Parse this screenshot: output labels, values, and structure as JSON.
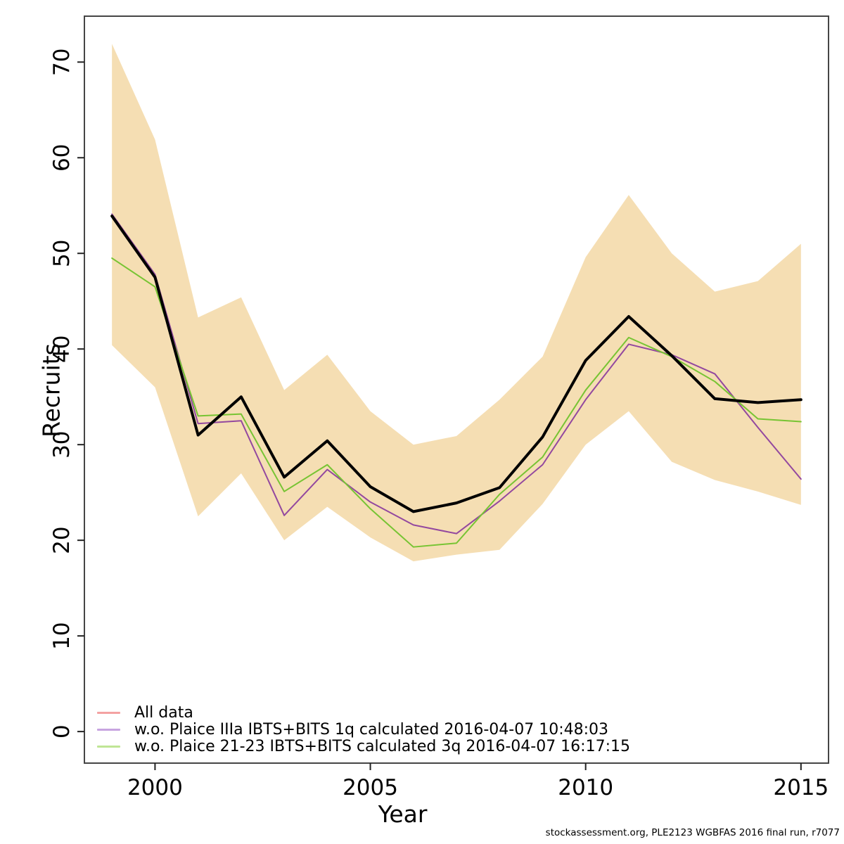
{
  "chart_data": {
    "type": "line",
    "title": "",
    "xlabel": "Year",
    "ylabel": "Recruits",
    "footer": "stockassessment.org, PLE2123 WGBFAS 2016 final run, r7077",
    "x": [
      1999,
      2000,
      2001,
      2002,
      2003,
      2004,
      2005,
      2006,
      2007,
      2008,
      2009,
      2010,
      2011,
      2012,
      2013,
      2014,
      2015
    ],
    "x_ticks": [
      2000,
      2005,
      2010,
      2015
    ],
    "y_ticks": [
      0,
      10,
      20,
      30,
      40,
      50,
      60,
      70
    ],
    "xlim": [
      1998.36,
      2015.64
    ],
    "ylim": [
      -3.3,
      74.8
    ],
    "grid": false,
    "legend_position": "bottom-left",
    "band": {
      "id": "confidence-band",
      "color": "#f5deb3",
      "upper": [
        71.9,
        61.9,
        43.3,
        45.4,
        35.7,
        39.4,
        33.5,
        30.0,
        30.9,
        34.7,
        39.2,
        49.6,
        56.1,
        50.0,
        46.0,
        47.1,
        51.0
      ],
      "lower": [
        40.4,
        36.0,
        22.5,
        27.0,
        20.0,
        23.5,
        20.3,
        17.8,
        18.5,
        19.0,
        23.8,
        30.0,
        33.5,
        28.2,
        26.3,
        25.1,
        23.7
      ]
    },
    "series": [
      {
        "id": "all-data",
        "name": "All data",
        "color": "#ee8181",
        "legend_color": "#f4a2a2",
        "width": 2,
        "in_legend": true,
        "values": [
          53.9,
          47.5,
          31.0,
          35.0,
          26.6,
          30.4,
          25.6,
          23.0,
          23.9,
          25.5,
          30.8,
          38.8,
          43.4,
          39.3,
          34.8,
          34.4,
          34.7
        ]
      },
      {
        "id": "wo-plaice-iiia-ibts-bits-1q",
        "name": "w.o. Plaice IIIa IBTS+BITS 1q calculated 2016-04-07 10:48:03",
        "color": "#93489f",
        "legend_color": "#c7a4e0",
        "width": 2,
        "in_legend": true,
        "values": [
          54.1,
          47.8,
          32.2,
          32.5,
          22.6,
          27.4,
          24.0,
          21.6,
          20.7,
          24.1,
          27.9,
          34.7,
          40.5,
          39.4,
          37.4,
          31.8,
          26.4
        ]
      },
      {
        "id": "wo-plaice-21-23-ibts-bits-3q",
        "name": "w.o. Plaice 21-23 IBTS+BITS calculated 3q 2016-04-07 16:17:15",
        "color": "#77c433",
        "legend_color": "#bfe595",
        "width": 2,
        "in_legend": true,
        "values": [
          49.5,
          46.5,
          33.0,
          33.2,
          25.1,
          27.9,
          23.3,
          19.3,
          19.7,
          24.8,
          28.7,
          35.7,
          41.2,
          39.2,
          36.6,
          32.7,
          32.4
        ]
      },
      {
        "id": "base-run",
        "name": "",
        "color": "#000000",
        "width": 4,
        "in_legend": false,
        "values": [
          53.9,
          47.5,
          31.0,
          35.0,
          26.6,
          30.4,
          25.6,
          23.0,
          23.9,
          25.5,
          30.8,
          38.8,
          43.4,
          39.3,
          34.8,
          34.4,
          34.7
        ]
      }
    ]
  }
}
